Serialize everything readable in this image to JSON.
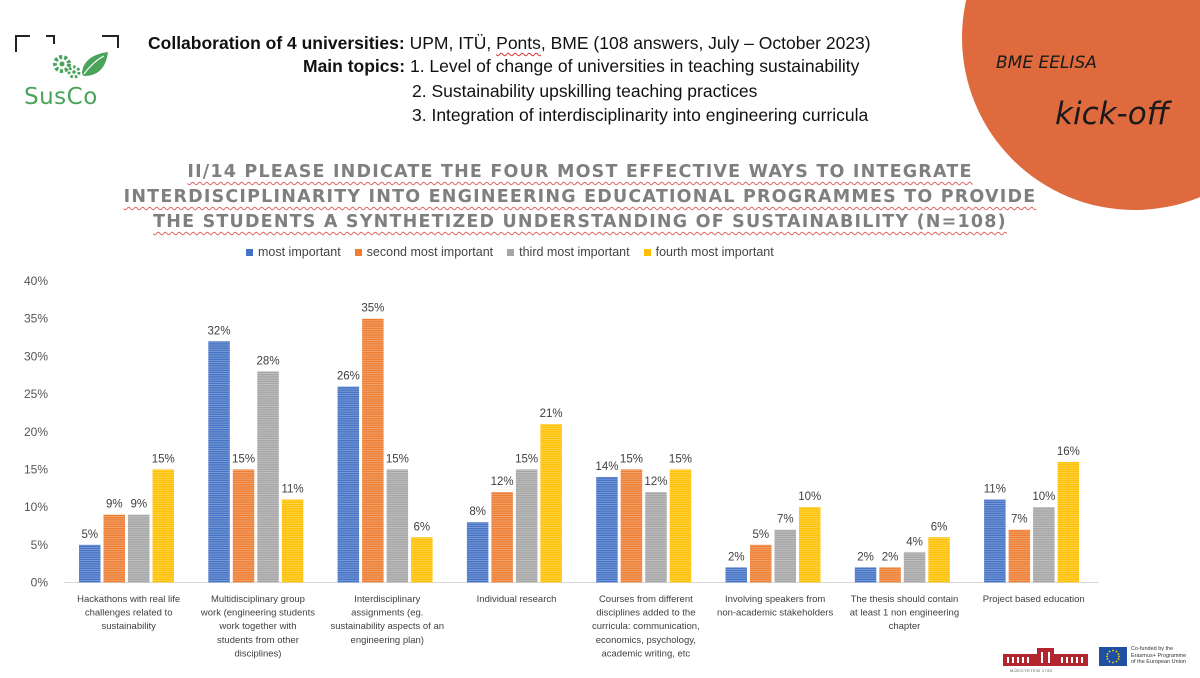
{
  "header": {
    "collab_label": "Collaboration of 4 universities:",
    "collab_pre": "UPM, ITÜ,",
    "collab_ponts": "Ponts",
    "collab_post": ", BME (108 answers, July – October 2023)",
    "topics_label": "Main topics:",
    "topic_1": "1. Level of change of universities in teaching sustainability",
    "topic_2": "2. Sustainability upskilling teaching practices",
    "topic_3": "3. Integration of interdisciplinarity into engineering curricula"
  },
  "logo": {
    "text": "SusCo",
    "icon": "gears-leaf-icon"
  },
  "corner": {
    "event_name": "BME EELISA",
    "event_sub": "kick-off",
    "color": "#de6a3e"
  },
  "footer": {
    "eu_text": [
      "Co-funded by the",
      "Erasmus+ Programme",
      "of the European Union"
    ],
    "bme_text": "MŰEGYETEM 1782"
  },
  "chart_data": {
    "type": "bar",
    "title_lines": [
      "II/14 PLEASE INDICATE THE FOUR MOST EFFECTIVE WAYS TO INTEGRATE",
      "INTERDISCIPLINARITY INTO ENGINEERING EDUCATIONAL PROGRAMMES TO PROVIDE",
      "THE STUDENTS A SYNTHETIZED UNDERSTANDING OF SUSTAINABILITY (N=108)"
    ],
    "categories": [
      [
        "Hackathons with real life",
        "challenges related to",
        "sustainability"
      ],
      [
        "Multidisciplinary group",
        "work (engineering students",
        "work together with",
        "students from other",
        "disciplines)"
      ],
      [
        "Interdisciplinary",
        "assignments (eg.",
        "sustainability aspects of an",
        "engineering plan)"
      ],
      [
        "Individual research"
      ],
      [
        "Courses from different",
        "disciplines added to the",
        "curricula: communication,",
        "economics, psychology,",
        "academic writing, etc"
      ],
      [
        "Involving speakers from",
        "non-academic stakeholders"
      ],
      [
        "The thesis should contain",
        "at least 1 non engineering",
        "chapter"
      ],
      [
        "Project based education"
      ]
    ],
    "series": [
      {
        "name": "most important",
        "color": "#4472c4",
        "values": [
          5,
          32,
          26,
          8,
          14,
          2,
          2,
          11
        ],
        "labels": [
          "5%",
          "32%",
          "26%",
          "8%",
          "14%",
          "2%",
          "2%",
          "11%"
        ]
      },
      {
        "name": "second most important",
        "color": "#ed7d31",
        "values": [
          9,
          15,
          35,
          12,
          15,
          5,
          2,
          7
        ],
        "labels": [
          "9%",
          "15%",
          "35%",
          "12%",
          "15%",
          "5%",
          "2%",
          "7%"
        ]
      },
      {
        "name": "third most important",
        "color": "#a5a5a5",
        "values": [
          9,
          28,
          15,
          15,
          12,
          7,
          4,
          10
        ],
        "labels": [
          "9%",
          "28%",
          "15%",
          "15%",
          "12%",
          "7%",
          "4%",
          "10%"
        ]
      },
      {
        "name": "fourth most important",
        "color": "#ffc000",
        "values": [
          15,
          11,
          6,
          21,
          15,
          10,
          6,
          16
        ],
        "labels": [
          "15%",
          "11%",
          "6%",
          "21%",
          "15%",
          "10%",
          "6%",
          "16%"
        ]
      }
    ],
    "yticks": [
      "0%",
      "5%",
      "10%",
      "15%",
      "20%",
      "25%",
      "30%",
      "35%",
      "40%"
    ],
    "ylim": [
      0,
      40
    ],
    "legend_position": "top",
    "grid": false
  }
}
